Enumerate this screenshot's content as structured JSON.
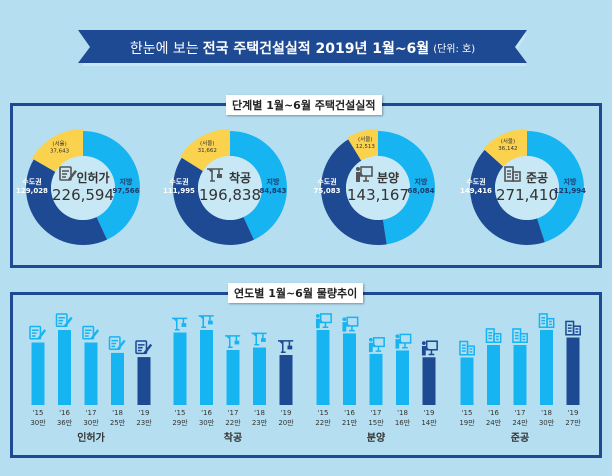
{
  "header": {
    "title_prefix": "한눈에 보는",
    "title_main": "전국 주택건설실적 2019년 1월~6월",
    "unit": "(단위: 호)"
  },
  "section1": {
    "label": "단계별 1월~6월 주택건설실적"
  },
  "section2": {
    "label": "연도별 1월~6월 물량추이"
  },
  "colors": {
    "background": "#b5dff1",
    "navy": "#1d4a92",
    "light_blue": "#17b4f2",
    "seoul_yellow": "#fbd24e"
  },
  "chart_data": [
    {
      "type": "pie",
      "variant": "donut",
      "name": "인허가",
      "icon": "permit-document-icon",
      "total": "226,594",
      "segments": [
        {
          "label": "지방",
          "value": 97566,
          "display": "97,566"
        },
        {
          "label": "수도권",
          "value": 129028,
          "display": "129,028"
        },
        {
          "label": "(서울)",
          "value": 37643,
          "display": "37,643",
          "subset_of": "수도권"
        }
      ]
    },
    {
      "type": "pie",
      "variant": "donut",
      "name": "착공",
      "icon": "crane-icon",
      "total": "196,838",
      "segments": [
        {
          "label": "지방",
          "value": 84843,
          "display": "84,843"
        },
        {
          "label": "수도권",
          "value": 111995,
          "display": "111,995"
        },
        {
          "label": "(서울)",
          "value": 31662,
          "display": "31,662",
          "subset_of": "수도권"
        }
      ]
    },
    {
      "type": "pie",
      "variant": "donut",
      "name": "분양",
      "icon": "presentation-icon",
      "total": "143,167",
      "segments": [
        {
          "label": "지방",
          "value": 68084,
          "display": "68,084"
        },
        {
          "label": "수도권",
          "value": 75083,
          "display": "75,083"
        },
        {
          "label": "(서울)",
          "value": 12513,
          "display": "12,513",
          "subset_of": "수도권"
        }
      ]
    },
    {
      "type": "pie",
      "variant": "donut",
      "name": "준공",
      "icon": "building-icon",
      "total": "271,410",
      "segments": [
        {
          "label": "지방",
          "value": 121994,
          "display": "121,994"
        },
        {
          "label": "수도권",
          "value": 149416,
          "display": "149,416"
        },
        {
          "label": "(서울)",
          "value": 36142,
          "display": "36,142",
          "subset_of": "수도권"
        }
      ]
    },
    {
      "type": "bar",
      "groups": [
        {
          "name": "인허가",
          "icon": "permit-document-icon",
          "categories": [
            "'15",
            "'16",
            "'17",
            "'18",
            "'19"
          ],
          "values": [
            30,
            36,
            30,
            25,
            23
          ],
          "value_labels": [
            "30만",
            "36만",
            "30만",
            "25만",
            "23만"
          ]
        },
        {
          "name": "착공",
          "icon": "crane-icon",
          "categories": [
            "'15",
            "'16",
            "'17",
            "'18",
            "'19"
          ],
          "values": [
            29,
            30,
            22,
            23,
            20
          ],
          "value_labels": [
            "29만",
            "30만",
            "22만",
            "23만",
            "20만"
          ]
        },
        {
          "name": "분양",
          "icon": "presentation-icon",
          "categories": [
            "'15",
            "'16",
            "'17",
            "'18",
            "'19"
          ],
          "values": [
            22,
            21,
            15,
            16,
            14
          ],
          "value_labels": [
            "22만",
            "21만",
            "15만",
            "16만",
            "14만"
          ]
        },
        {
          "name": "준공",
          "icon": "building-icon",
          "categories": [
            "'15",
            "'16",
            "'17",
            "'18",
            "'19"
          ],
          "values": [
            19,
            24,
            24,
            30,
            27
          ],
          "value_labels": [
            "19만",
            "24만",
            "24만",
            "30만",
            "27만"
          ]
        }
      ],
      "highlight": "'19"
    }
  ]
}
